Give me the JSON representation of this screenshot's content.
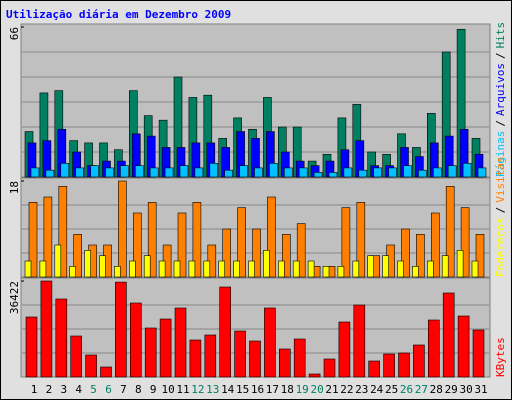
{
  "chart_data": [
    {
      "type": "bar",
      "title": "Utilização diária em Dezembro 2009",
      "legend_separator": "/",
      "ylim": [
        0,
        66
      ],
      "yticks": [
        66
      ],
      "series": [
        {
          "name": "Hits",
          "color": "#008060",
          "values": [
            20,
            37,
            38,
            16,
            15,
            15,
            12,
            38,
            27,
            25,
            44,
            35,
            36,
            17,
            26,
            21,
            35,
            22,
            22,
            7,
            10,
            26,
            32,
            11,
            10,
            19,
            13,
            28,
            55,
            65,
            17
          ]
        },
        {
          "name": "Arquivos",
          "color": "#0000ff",
          "values": [
            15,
            16,
            21,
            11,
            5,
            7,
            7,
            19,
            18,
            13,
            13,
            15,
            15,
            13,
            20,
            17,
            20,
            11,
            7,
            5,
            7,
            12,
            16,
            5,
            5,
            13,
            9,
            15,
            18,
            21,
            10
          ]
        },
        {
          "name": "Páginas",
          "color": "#00c0ff",
          "values": [
            4,
            3,
            6,
            4,
            5,
            4,
            5,
            5,
            4,
            4,
            5,
            4,
            6,
            3,
            5,
            4,
            6,
            4,
            4,
            2,
            2,
            4,
            3,
            4,
            4,
            5,
            3,
            4,
            5,
            6,
            4
          ]
        }
      ]
    },
    {
      "type": "bar",
      "ylim": [
        0,
        18
      ],
      "yticks": [
        18
      ],
      "series": [
        {
          "name": "Visitas",
          "color": "#ff8000",
          "values": [
            14,
            15,
            17,
            8,
            6,
            6,
            18,
            12,
            14,
            6,
            12,
            14,
            6,
            9,
            13,
            9,
            15,
            8,
            10,
            2,
            2,
            13,
            14,
            4,
            6,
            9,
            8,
            12,
            17,
            13,
            8
          ]
        },
        {
          "name": "Endereços",
          "color": "#ffff00",
          "values": [
            3,
            3,
            6,
            2,
            5,
            4,
            2,
            3,
            4,
            3,
            3,
            3,
            3,
            3,
            3,
            3,
            5,
            3,
            3,
            3,
            2,
            2,
            3,
            4,
            4,
            3,
            2,
            3,
            4,
            5,
            3
          ]
        }
      ]
    },
    {
      "type": "bar",
      "ylim": [
        0,
        36422
      ],
      "yticks": [
        36422
      ],
      "categories": [
        "1",
        "2",
        "3",
        "4",
        "5",
        "6",
        "7",
        "8",
        "9",
        "10",
        "11",
        "12",
        "13",
        "14",
        "15",
        "16",
        "17",
        "18",
        "19",
        "20",
        "21",
        "22",
        "23",
        "24",
        "25",
        "26",
        "27",
        "28",
        "29",
        "30",
        "31"
      ],
      "category_colors": [
        "#000000",
        "#000000",
        "#000000",
        "#000000",
        "#008060",
        "#008060",
        "#000000",
        "#000000",
        "#000000",
        "#000000",
        "#000000",
        "#008060",
        "#008060",
        "#000000",
        "#000000",
        "#000000",
        "#000000",
        "#000000",
        "#008060",
        "#008060",
        "#000000",
        "#000000",
        "#000000",
        "#000000",
        "#000000",
        "#008060",
        "#008060",
        "#000000",
        "#000000",
        "#000000",
        "#000000"
      ],
      "series": [
        {
          "name": "KBytes",
          "color": "#ff0000",
          "values": [
            22764,
            36422,
            29593,
            15555,
            8347,
            3794,
            36000,
            28075,
            18590,
            22003,
            26177,
            14037,
            15934,
            34146,
            17453,
            13657,
            26177,
            10623,
            14417,
            1138,
            6829,
            20866,
            27315,
            6070,
            8726,
            9106,
            12140,
            21625,
            31869,
            23143,
            17832
          ]
        }
      ]
    }
  ]
}
